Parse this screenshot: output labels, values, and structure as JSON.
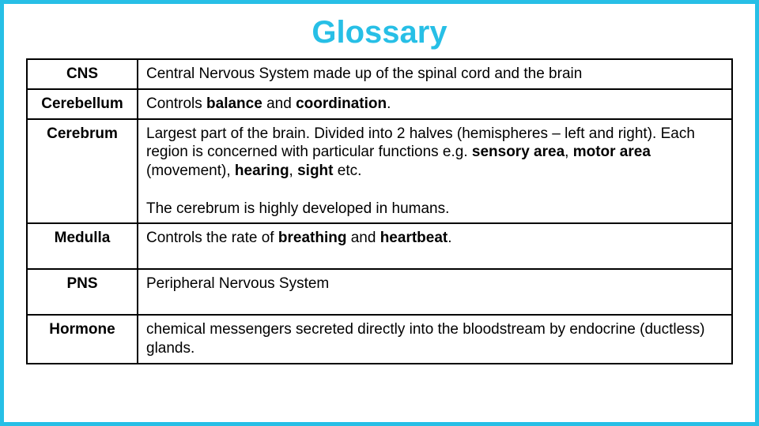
{
  "title": "Glossary",
  "border_color": "#27bfe6",
  "title_color": "#27bfe6",
  "cell_border_color": "#000000",
  "rows": [
    {
      "term": "CNS",
      "def": "Central Nervous System made up of the spinal cord and the brain"
    },
    {
      "term": "Cerebellum",
      "def": "Controls <b>balance</b> and <b>coordination</b>."
    },
    {
      "term": "Cerebrum",
      "def": "Largest part of the brain. Divided into 2 halves (hemispheres – left and right). Each region is concerned with particular functions e.g. <b>sensory area</b>, <b>motor area</b> (movement), <b>hearing</b>, <b>sight</b> etc.<br><br>The cerebrum is highly developed in humans."
    },
    {
      "term": "Medulla",
      "def": "Controls the rate of <b>breathing</b> and <b>heartbeat</b>."
    },
    {
      "term": "PNS",
      "def": "Peripheral Nervous System"
    },
    {
      "term": "Hormone",
      "def": "chemical messengers secreted directly into the bloodstream by endocrine (ductless) glands."
    }
  ]
}
